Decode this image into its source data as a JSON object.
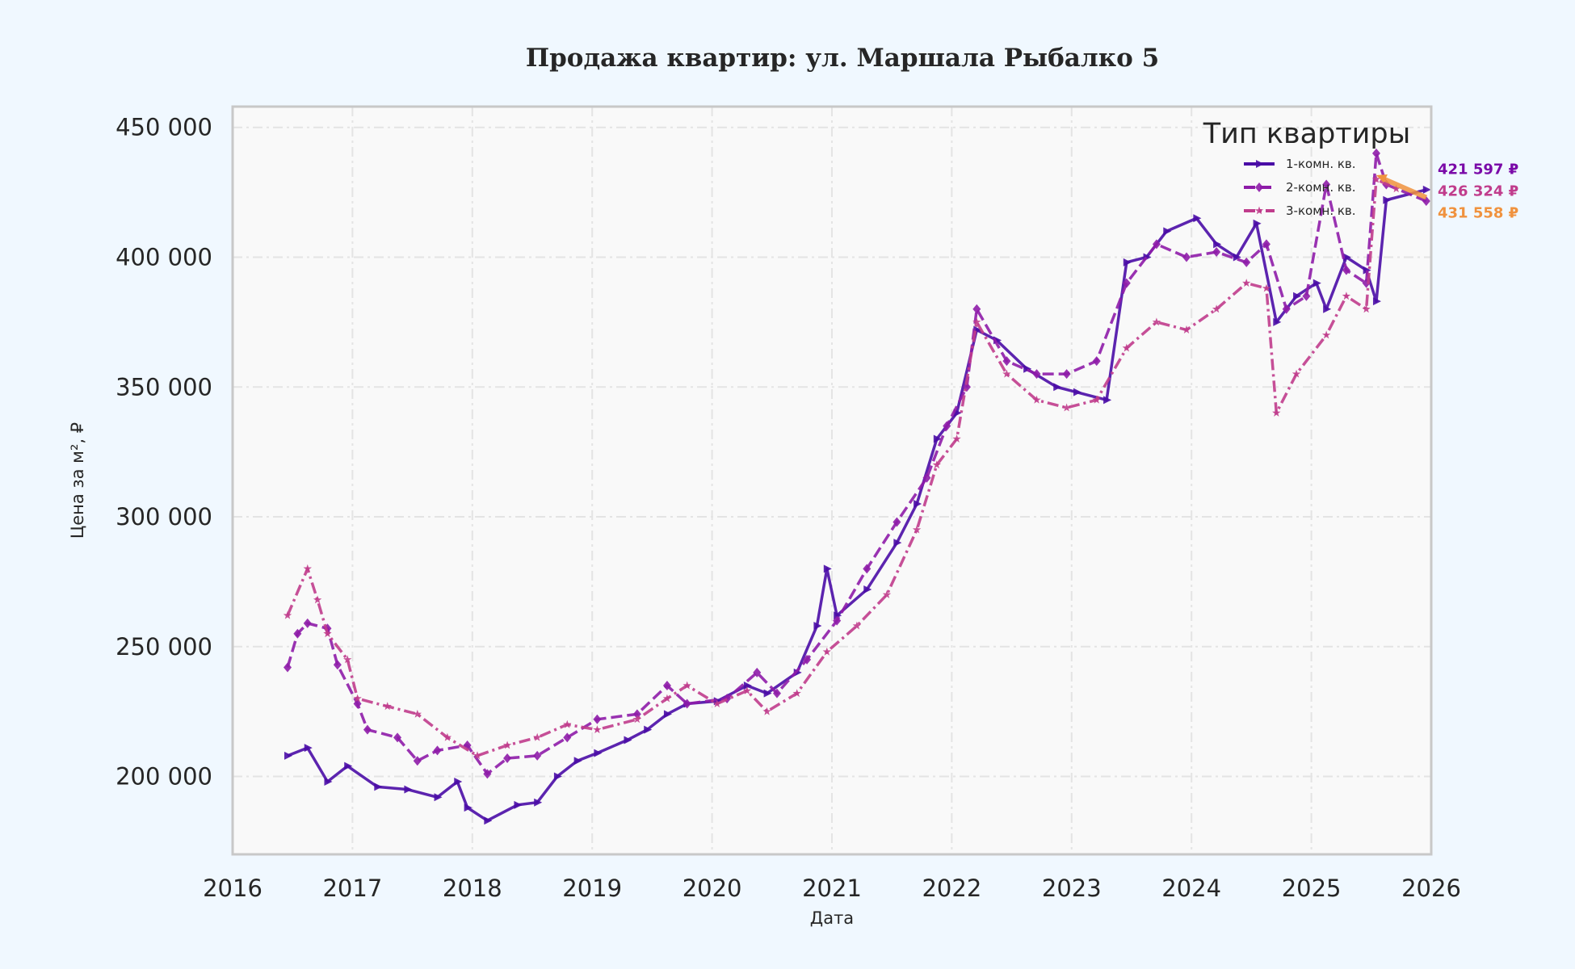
{
  "chart_data": {
    "type": "line",
    "title": "Продажа квартир: ул. Маршала Рыбалко 5",
    "xlabel": "Дата",
    "ylabel": "Цена за м², ₽",
    "xlim": [
      "2016-01",
      "2026-01"
    ],
    "ylim": [
      170000,
      458000
    ],
    "x_ticks": [
      "2016",
      "2017",
      "2018",
      "2019",
      "2020",
      "2021",
      "2022",
      "2023",
      "2024",
      "2025",
      "2026"
    ],
    "y_ticks": [
      200000,
      250000,
      300000,
      350000,
      400000,
      450000
    ],
    "y_tick_labels": [
      "200 000",
      "250 000",
      "300 000",
      "350 000",
      "400 000",
      "450 000"
    ],
    "grid": true,
    "legend": {
      "title": "Тип квартиры",
      "placement": "top-right"
    },
    "series": [
      {
        "name": "1-комн. кв.",
        "color": "#4a0ca6",
        "marker": "triangle-right",
        "dash": "solid",
        "points": [
          [
            "2016-06",
            208000
          ],
          [
            "2016-08",
            211000
          ],
          [
            "2016-10",
            198000
          ],
          [
            "2016-12",
            204000
          ],
          [
            "2017-03",
            196000
          ],
          [
            "2017-06",
            195000
          ],
          [
            "2017-09",
            192000
          ],
          [
            "2017-11",
            198000
          ],
          [
            "2017-12",
            188000
          ],
          [
            "2018-02",
            183000
          ],
          [
            "2018-05",
            189000
          ],
          [
            "2018-07",
            190000
          ],
          [
            "2018-09",
            200000
          ],
          [
            "2018-11",
            206000
          ],
          [
            "2019-01",
            209000
          ],
          [
            "2019-04",
            214000
          ],
          [
            "2019-06",
            218000
          ],
          [
            "2019-08",
            224000
          ],
          [
            "2019-10",
            228000
          ],
          [
            "2020-01",
            229000
          ],
          [
            "2020-04",
            235000
          ],
          [
            "2020-06",
            232000
          ],
          [
            "2020-09",
            240000
          ],
          [
            "2020-11",
            258000
          ],
          [
            "2020-12",
            280000
          ],
          [
            "2021-01",
            262000
          ],
          [
            "2021-04",
            272000
          ],
          [
            "2021-07",
            290000
          ],
          [
            "2021-09",
            305000
          ],
          [
            "2021-11",
            330000
          ],
          [
            "2022-01",
            340000
          ],
          [
            "2022-03",
            372000
          ],
          [
            "2022-05",
            368000
          ],
          [
            "2022-08",
            357000
          ],
          [
            "2022-11",
            350000
          ],
          [
            "2023-01",
            348000
          ],
          [
            "2023-04",
            345000
          ],
          [
            "2023-06",
            398000
          ],
          [
            "2023-08",
            400000
          ],
          [
            "2023-10",
            410000
          ],
          [
            "2024-01",
            415000
          ],
          [
            "2024-03",
            405000
          ],
          [
            "2024-05",
            400000
          ],
          [
            "2024-07",
            413000
          ],
          [
            "2024-09",
            375000
          ],
          [
            "2024-11",
            385000
          ],
          [
            "2025-01",
            390000
          ],
          [
            "2025-02",
            380000
          ],
          [
            "2025-04",
            400000
          ],
          [
            "2025-06",
            395000
          ],
          [
            "2025-07",
            383000
          ],
          [
            "2025-08",
            422000
          ],
          [
            "2025-12",
            426000
          ]
        ]
      },
      {
        "name": "2-комн. кв.",
        "color": "#8e1ca8",
        "marker": "diamond",
        "dash": "dashed",
        "points": [
          [
            "2016-06",
            242000
          ],
          [
            "2016-07",
            255000
          ],
          [
            "2016-08",
            259000
          ],
          [
            "2016-10",
            257000
          ],
          [
            "2016-11",
            243000
          ],
          [
            "2017-01",
            228000
          ],
          [
            "2017-02",
            218000
          ],
          [
            "2017-05",
            215000
          ],
          [
            "2017-07",
            206000
          ],
          [
            "2017-09",
            210000
          ],
          [
            "2017-12",
            212000
          ],
          [
            "2018-02",
            201000
          ],
          [
            "2018-04",
            207000
          ],
          [
            "2018-07",
            208000
          ],
          [
            "2018-10",
            215000
          ],
          [
            "2019-01",
            222000
          ],
          [
            "2019-05",
            224000
          ],
          [
            "2019-08",
            235000
          ],
          [
            "2019-10",
            228000
          ],
          [
            "2020-02",
            230000
          ],
          [
            "2020-05",
            240000
          ],
          [
            "2020-07",
            232000
          ],
          [
            "2020-10",
            245000
          ],
          [
            "2021-01",
            260000
          ],
          [
            "2021-04",
            280000
          ],
          [
            "2021-07",
            298000
          ],
          [
            "2021-10",
            315000
          ],
          [
            "2021-12",
            335000
          ],
          [
            "2022-02",
            350000
          ],
          [
            "2022-03",
            380000
          ],
          [
            "2022-06",
            360000
          ],
          [
            "2022-09",
            355000
          ],
          [
            "2022-12",
            355000
          ],
          [
            "2023-03",
            360000
          ],
          [
            "2023-06",
            390000
          ],
          [
            "2023-09",
            405000
          ],
          [
            "2023-12",
            400000
          ],
          [
            "2024-03",
            402000
          ],
          [
            "2024-06",
            398000
          ],
          [
            "2024-08",
            405000
          ],
          [
            "2024-10",
            380000
          ],
          [
            "2024-12",
            385000
          ],
          [
            "2025-02",
            428000
          ],
          [
            "2025-04",
            395000
          ],
          [
            "2025-06",
            390000
          ],
          [
            "2025-07",
            440000
          ],
          [
            "2025-08",
            428000
          ],
          [
            "2025-12",
            421597
          ]
        ]
      },
      {
        "name": "3-комн. кв.",
        "color": "#c03c8c",
        "marker": "star",
        "dash": "dashdot",
        "points": [
          [
            "2016-06",
            262000
          ],
          [
            "2016-08",
            280000
          ],
          [
            "2016-09",
            268000
          ],
          [
            "2016-10",
            255000
          ],
          [
            "2016-12",
            245000
          ],
          [
            "2017-01",
            230000
          ],
          [
            "2017-04",
            227000
          ],
          [
            "2017-07",
            224000
          ],
          [
            "2017-10",
            215000
          ],
          [
            "2018-01",
            208000
          ],
          [
            "2018-04",
            212000
          ],
          [
            "2018-07",
            215000
          ],
          [
            "2018-10",
            220000
          ],
          [
            "2019-01",
            218000
          ],
          [
            "2019-05",
            222000
          ],
          [
            "2019-08",
            230000
          ],
          [
            "2019-10",
            235000
          ],
          [
            "2020-01",
            228000
          ],
          [
            "2020-04",
            233000
          ],
          [
            "2020-06",
            225000
          ],
          [
            "2020-09",
            232000
          ],
          [
            "2020-12",
            248000
          ],
          [
            "2021-03",
            258000
          ],
          [
            "2021-06",
            270000
          ],
          [
            "2021-09",
            295000
          ],
          [
            "2021-11",
            320000
          ],
          [
            "2022-01",
            330000
          ],
          [
            "2022-03",
            375000
          ],
          [
            "2022-06",
            355000
          ],
          [
            "2022-09",
            345000
          ],
          [
            "2022-12",
            342000
          ],
          [
            "2023-03",
            345000
          ],
          [
            "2023-06",
            365000
          ],
          [
            "2023-09",
            375000
          ],
          [
            "2023-12",
            372000
          ],
          [
            "2024-03",
            380000
          ],
          [
            "2024-06",
            390000
          ],
          [
            "2024-08",
            388000
          ],
          [
            "2024-09",
            340000
          ],
          [
            "2024-11",
            355000
          ],
          [
            "2025-02",
            370000
          ],
          [
            "2025-04",
            385000
          ],
          [
            "2025-06",
            380000
          ],
          [
            "2025-07",
            430000
          ],
          [
            "2025-09",
            426324
          ]
        ]
      }
    ],
    "trend_arrow": {
      "color": "#f0923e",
      "from": [
        "2025-07",
        431558
      ],
      "to": [
        "2025-12",
        423000
      ]
    },
    "annotations": [
      {
        "text": "421 597 ₽",
        "color": "#7a0aa8",
        "at": [
          "2025-12",
          432000
        ]
      },
      {
        "text": "426 324 ₽",
        "color": "#c03c8c",
        "at": [
          "2025-10",
          429500
        ]
      },
      {
        "text": "431 558 ₽",
        "color": "#f0923e",
        "at": [
          "2025-11",
          417000
        ]
      }
    ],
    "colors": {
      "page_bg": "#f0f8ff",
      "plot_bg": "#f9f9f9",
      "grid": "#e4e4e4",
      "frame": "#c8c8c8"
    }
  }
}
